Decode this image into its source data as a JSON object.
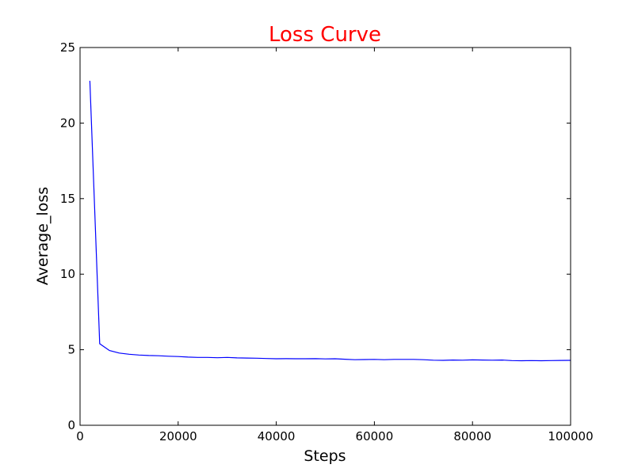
{
  "chart_data": {
    "type": "line",
    "title": "Loss Curve",
    "title_color": "#ff0000",
    "xlabel": "Steps",
    "ylabel": "Average_loss",
    "xlim": [
      0,
      100000
    ],
    "ylim": [
      0,
      25
    ],
    "x_ticks": [
      0,
      20000,
      40000,
      60000,
      80000,
      100000
    ],
    "y_ticks": [
      0,
      5,
      10,
      15,
      20,
      25
    ],
    "grid": false,
    "legend": "none",
    "series": [
      {
        "color": "#0000ff",
        "x": [
          2000,
          4000,
          6000,
          8000,
          10000,
          12000,
          14000,
          16000,
          18000,
          20000,
          22000,
          24000,
          26000,
          28000,
          30000,
          32000,
          34000,
          36000,
          38000,
          40000,
          42000,
          44000,
          46000,
          48000,
          50000,
          52000,
          54000,
          56000,
          58000,
          60000,
          62000,
          64000,
          66000,
          68000,
          70000,
          72000,
          74000,
          76000,
          78000,
          80000,
          82000,
          84000,
          86000,
          88000,
          90000,
          92000,
          94000,
          96000,
          98000,
          100000
        ],
        "y": [
          22.8,
          5.4,
          4.95,
          4.78,
          4.7,
          4.65,
          4.62,
          4.6,
          4.57,
          4.55,
          4.51,
          4.49,
          4.49,
          4.47,
          4.49,
          4.46,
          4.45,
          4.44,
          4.42,
          4.4,
          4.41,
          4.4,
          4.4,
          4.41,
          4.39,
          4.4,
          4.37,
          4.34,
          4.35,
          4.36,
          4.34,
          4.36,
          4.36,
          4.36,
          4.34,
          4.31,
          4.3,
          4.32,
          4.31,
          4.33,
          4.32,
          4.31,
          4.32,
          4.28,
          4.27,
          4.28,
          4.27,
          4.28,
          4.29,
          4.3
        ]
      }
    ]
  }
}
